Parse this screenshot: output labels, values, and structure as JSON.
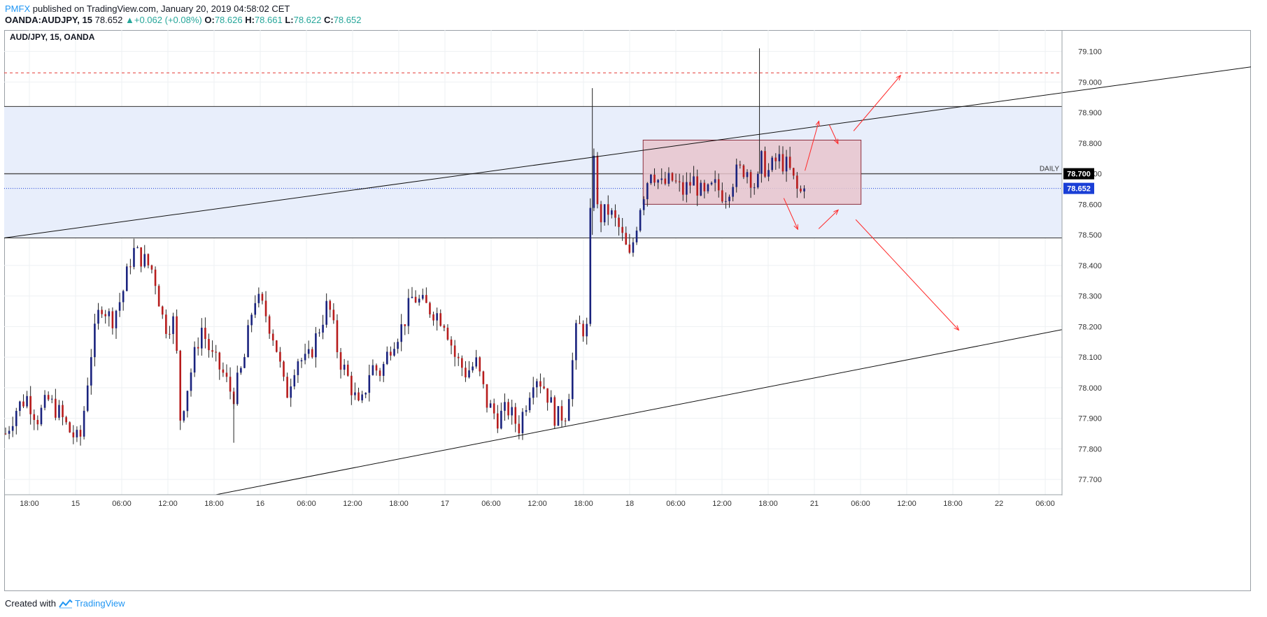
{
  "header": {
    "brand": "PMFX",
    "published": " published on TradingView.com, January 20, 2019 04:58:02 CET",
    "symbol": "OANDA:AUDJPY, 15",
    "last": "78.652",
    "change": "+0.062 (+0.08%)",
    "o_label": "O:",
    "o_value": "78.626",
    "h_label": "H:",
    "h_value": "78.661",
    "l_label": "L:",
    "l_value": "78.622",
    "c_label": "C:",
    "c_value": "78.652"
  },
  "footer": {
    "created_with": "Created with",
    "tradingview": "TradingView"
  },
  "colors": {
    "bull": "#1a237e",
    "bear": "#b71c1c",
    "zone": "#e8eefb",
    "box": "#e8c4cc",
    "arrow": "#ff2a2a",
    "accent": "#2196f3"
  },
  "chart_data": {
    "type": "candlestick",
    "title": "AUD/JPY, 15, OANDA",
    "ylim": [
      77.65,
      79.17
    ],
    "y_ticks": [
      77.7,
      77.8,
      77.9,
      78.0,
      78.1,
      78.2,
      78.3,
      78.4,
      78.5,
      78.6,
      78.7,
      78.8,
      78.9,
      79.0,
      79.1
    ],
    "x_tick_labels": [
      "18:00",
      "15",
      "06:00",
      "12:00",
      "18:00",
      "16",
      "06:00",
      "12:00",
      "18:00",
      "17",
      "06:00",
      "12:00",
      "18:00",
      "18",
      "06:00",
      "12:00",
      "18:00",
      "21",
      "06:00",
      "12:00",
      "18:00",
      "22",
      "06:00"
    ],
    "price_labels": [
      {
        "value": 78.7,
        "text": "78.700",
        "bg": "#000000"
      },
      {
        "value": 78.652,
        "text": "78.652",
        "bg": "#1a3fd6"
      }
    ],
    "daily_label": "DAILY",
    "daily_level": 78.7,
    "current_price": 78.652,
    "resistance_dashed": 79.03,
    "zone": [
      78.49,
      78.92
    ],
    "range_box": {
      "top": 78.81,
      "bottom": 78.6
    },
    "trendlines": [
      {
        "from": [
          0,
          78.49
        ],
        "to": [
          1.18,
          79.05
        ]
      },
      {
        "from": [
          0.2,
          77.65
        ],
        "to": [
          1.0,
          78.19
        ]
      }
    ],
    "close_path": [
      [
        0.0,
        77.85
      ],
      [
        0.01,
        77.93
      ],
      [
        0.02,
        77.97
      ],
      [
        0.03,
        77.9
      ],
      [
        0.04,
        77.96
      ],
      [
        0.05,
        77.92
      ],
      [
        0.06,
        77.86
      ],
      [
        0.07,
        77.82
      ],
      [
        0.075,
        77.95
      ],
      [
        0.08,
        78.1
      ],
      [
        0.09,
        78.28
      ],
      [
        0.1,
        78.22
      ],
      [
        0.11,
        78.3
      ],
      [
        0.12,
        78.45
      ],
      [
        0.13,
        78.42
      ],
      [
        0.14,
        78.38
      ],
      [
        0.15,
        78.2
      ],
      [
        0.16,
        78.22
      ],
      [
        0.165,
        77.9
      ],
      [
        0.175,
        78.05
      ],
      [
        0.185,
        78.2
      ],
      [
        0.195,
        78.1
      ],
      [
        0.205,
        78.05
      ],
      [
        0.215,
        77.97
      ],
      [
        0.225,
        78.08
      ],
      [
        0.235,
        78.3
      ],
      [
        0.245,
        78.25
      ],
      [
        0.255,
        78.15
      ],
      [
        0.265,
        77.97
      ],
      [
        0.275,
        78.1
      ],
      [
        0.285,
        78.08
      ],
      [
        0.295,
        78.18
      ],
      [
        0.305,
        78.28
      ],
      [
        0.315,
        78.1
      ],
      [
        0.325,
        78.02
      ],
      [
        0.335,
        77.92
      ],
      [
        0.345,
        78.07
      ],
      [
        0.355,
        78.05
      ],
      [
        0.365,
        78.15
      ],
      [
        0.375,
        78.2
      ],
      [
        0.385,
        78.3
      ],
      [
        0.395,
        78.27
      ],
      [
        0.405,
        78.25
      ],
      [
        0.415,
        78.22
      ],
      [
        0.425,
        78.1
      ],
      [
        0.435,
        78.05
      ],
      [
        0.445,
        78.08
      ],
      [
        0.455,
        77.95
      ],
      [
        0.465,
        77.9
      ],
      [
        0.475,
        77.93
      ],
      [
        0.485,
        77.87
      ],
      [
        0.5,
        78.05
      ],
      [
        0.51,
        78.0
      ],
      [
        0.52,
        77.9
      ],
      [
        0.53,
        77.92
      ],
      [
        0.54,
        78.2
      ],
      [
        0.55,
        78.19
      ],
      [
        0.555,
        78.85
      ],
      [
        0.56,
        78.55
      ],
      [
        0.57,
        78.58
      ],
      [
        0.58,
        78.52
      ],
      [
        0.59,
        78.42
      ],
      [
        0.6,
        78.6
      ],
      [
        0.61,
        78.72
      ],
      [
        0.62,
        78.66
      ],
      [
        0.63,
        78.68
      ],
      [
        0.64,
        78.64
      ],
      [
        0.65,
        78.68
      ],
      [
        0.66,
        78.62
      ],
      [
        0.67,
        78.66
      ],
      [
        0.68,
        78.63
      ],
      [
        0.69,
        78.7
      ],
      [
        0.7,
        78.72
      ],
      [
        0.71,
        78.65
      ],
      [
        0.715,
        78.75
      ],
      [
        0.72,
        78.7
      ],
      [
        0.73,
        78.75
      ],
      [
        0.74,
        78.72
      ],
      [
        0.75,
        78.63
      ],
      [
        0.755,
        78.652
      ]
    ]
  }
}
